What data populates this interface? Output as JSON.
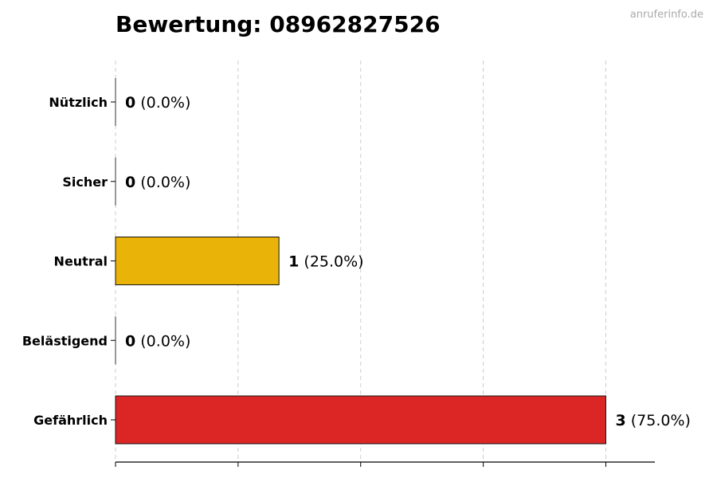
{
  "watermark": "anruferinfo.de",
  "chart_data": {
    "type": "bar",
    "orientation": "horizontal",
    "title": "Bewertung: 08962827526",
    "xlabel": "",
    "ylabel": "",
    "categories": [
      "Nützlich",
      "Sicher",
      "Neutral",
      "Belästigend",
      "Gefährlich"
    ],
    "values": [
      0,
      0,
      1,
      0,
      3
    ],
    "percent_labels": [
      "(0.0%)",
      "(0.0%)",
      "(25.0%)",
      "(0.0%)",
      "(75.0%)"
    ],
    "colors": [
      "#22c55e",
      "#3b82f6",
      "#eab308",
      "#f97316",
      "#dc2626"
    ],
    "xlim": [
      0,
      3.3
    ],
    "xticks": [
      0,
      0.75,
      1.5,
      2.25,
      3
    ],
    "xtick_labels_shown": false,
    "grid": "vertical-dashed"
  }
}
